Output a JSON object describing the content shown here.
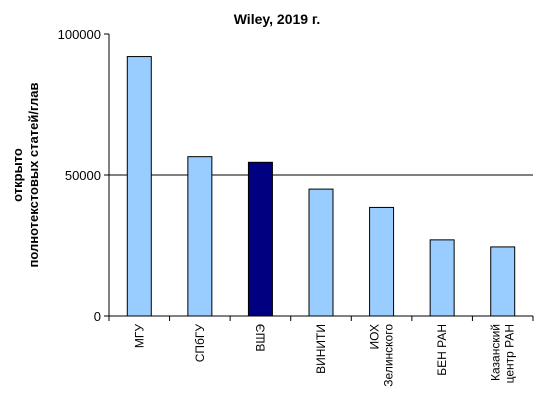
{
  "chart_data": {
    "type": "bar",
    "title": "Wiley, 2019 г.",
    "ylabel_lines": [
      "открыто",
      "полнотекстовых статей/глав"
    ],
    "xlabel": "",
    "ylim": [
      0,
      100000
    ],
    "yticks": [
      0,
      50000,
      100000
    ],
    "ytick_labels": [
      "0",
      "50000",
      "100000"
    ],
    "gridlines": [
      50000
    ],
    "legend": "none",
    "categories": [
      [
        "МГУ"
      ],
      [
        "СПбГУ"
      ],
      [
        "ВШЭ"
      ],
      [
        "ВИНИТИ"
      ],
      [
        "ИОХ",
        "Зелинского"
      ],
      [
        "БЕН РАН"
      ],
      [
        "Казанский",
        "центр РАН"
      ]
    ],
    "values": [
      92000,
      56500,
      54500,
      45000,
      38500,
      27000,
      24500
    ],
    "colors": [
      "#99ccff",
      "#99ccff",
      "#000080",
      "#99ccff",
      "#99ccff",
      "#99ccff",
      "#99ccff"
    ]
  }
}
